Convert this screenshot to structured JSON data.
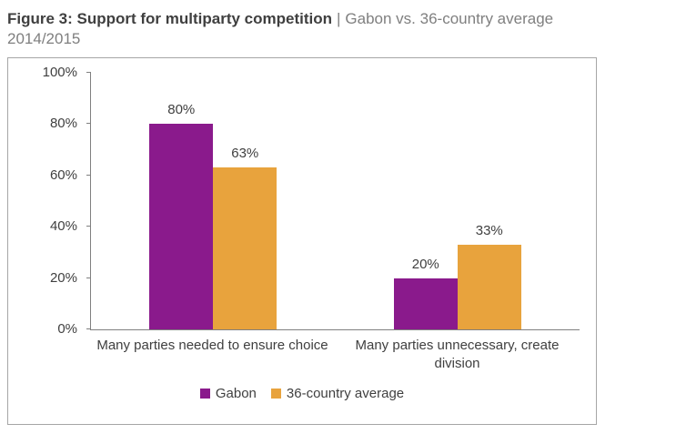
{
  "figure": {
    "title_bold": "Figure 3: Support for multiparty competition",
    "title_separator": "|",
    "title_light": "Gabon vs. 36-country average",
    "title_line2": "2014/2015"
  },
  "chart_data": {
    "type": "bar",
    "categories": [
      "Many parties needed to ensure choice",
      "Many parties unnecessary, create division"
    ],
    "series": [
      {
        "name": "Gabon",
        "color": "#8a1a8c",
        "values": [
          80,
          20
        ]
      },
      {
        "name": "36-country average",
        "color": "#e8a33d",
        "values": [
          63,
          33
        ]
      }
    ],
    "value_suffix": "%",
    "ylim": [
      0,
      100
    ],
    "yticks": [
      "0%",
      "20%",
      "40%",
      "60%",
      "80%",
      "100%"
    ],
    "grid": false,
    "legend_position": "bottom"
  }
}
